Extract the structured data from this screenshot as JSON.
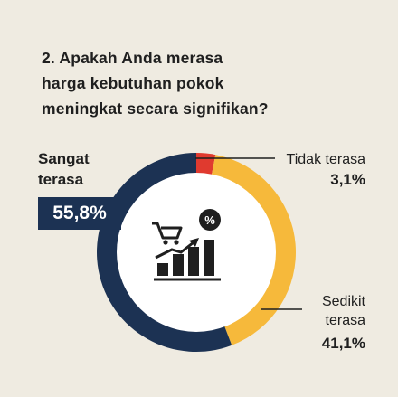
{
  "title_lines": [
    "2. Apakah Anda merasa",
    "harga kebutuhan pokok",
    "meningkat secara signifikan?"
  ],
  "colors": {
    "background": "#efebe1",
    "navy": "#1c3253",
    "yellow": "#f6b93b",
    "red": "#e03a2f"
  },
  "icon": "shopping-cart-rising-price-bar-chart-icon",
  "chart_data": {
    "type": "pie",
    "title": "2. Apakah Anda merasa harga kebutuhan pokok meningkat secara signifikan?",
    "slices": [
      {
        "label": "Tidak terasa",
        "value": 3.1,
        "display": "3,1%",
        "color": "#e03a2f"
      },
      {
        "label": "Sedikit terasa",
        "value": 41.1,
        "display": "41,1%",
        "color": "#f6b93b"
      },
      {
        "label": "Sangat terasa",
        "value": 55.8,
        "display": "55,8%",
        "color": "#1c3253"
      }
    ]
  },
  "labels": {
    "sangat_line1": "Sangat",
    "sangat_line2": "terasa",
    "sangat_value": "55,8%",
    "tidak_name": "Tidak terasa",
    "tidak_value": "3,1%",
    "sedikit_line1": "Sedikit",
    "sedikit_line2": "terasa",
    "sedikit_value": "41,1%"
  }
}
